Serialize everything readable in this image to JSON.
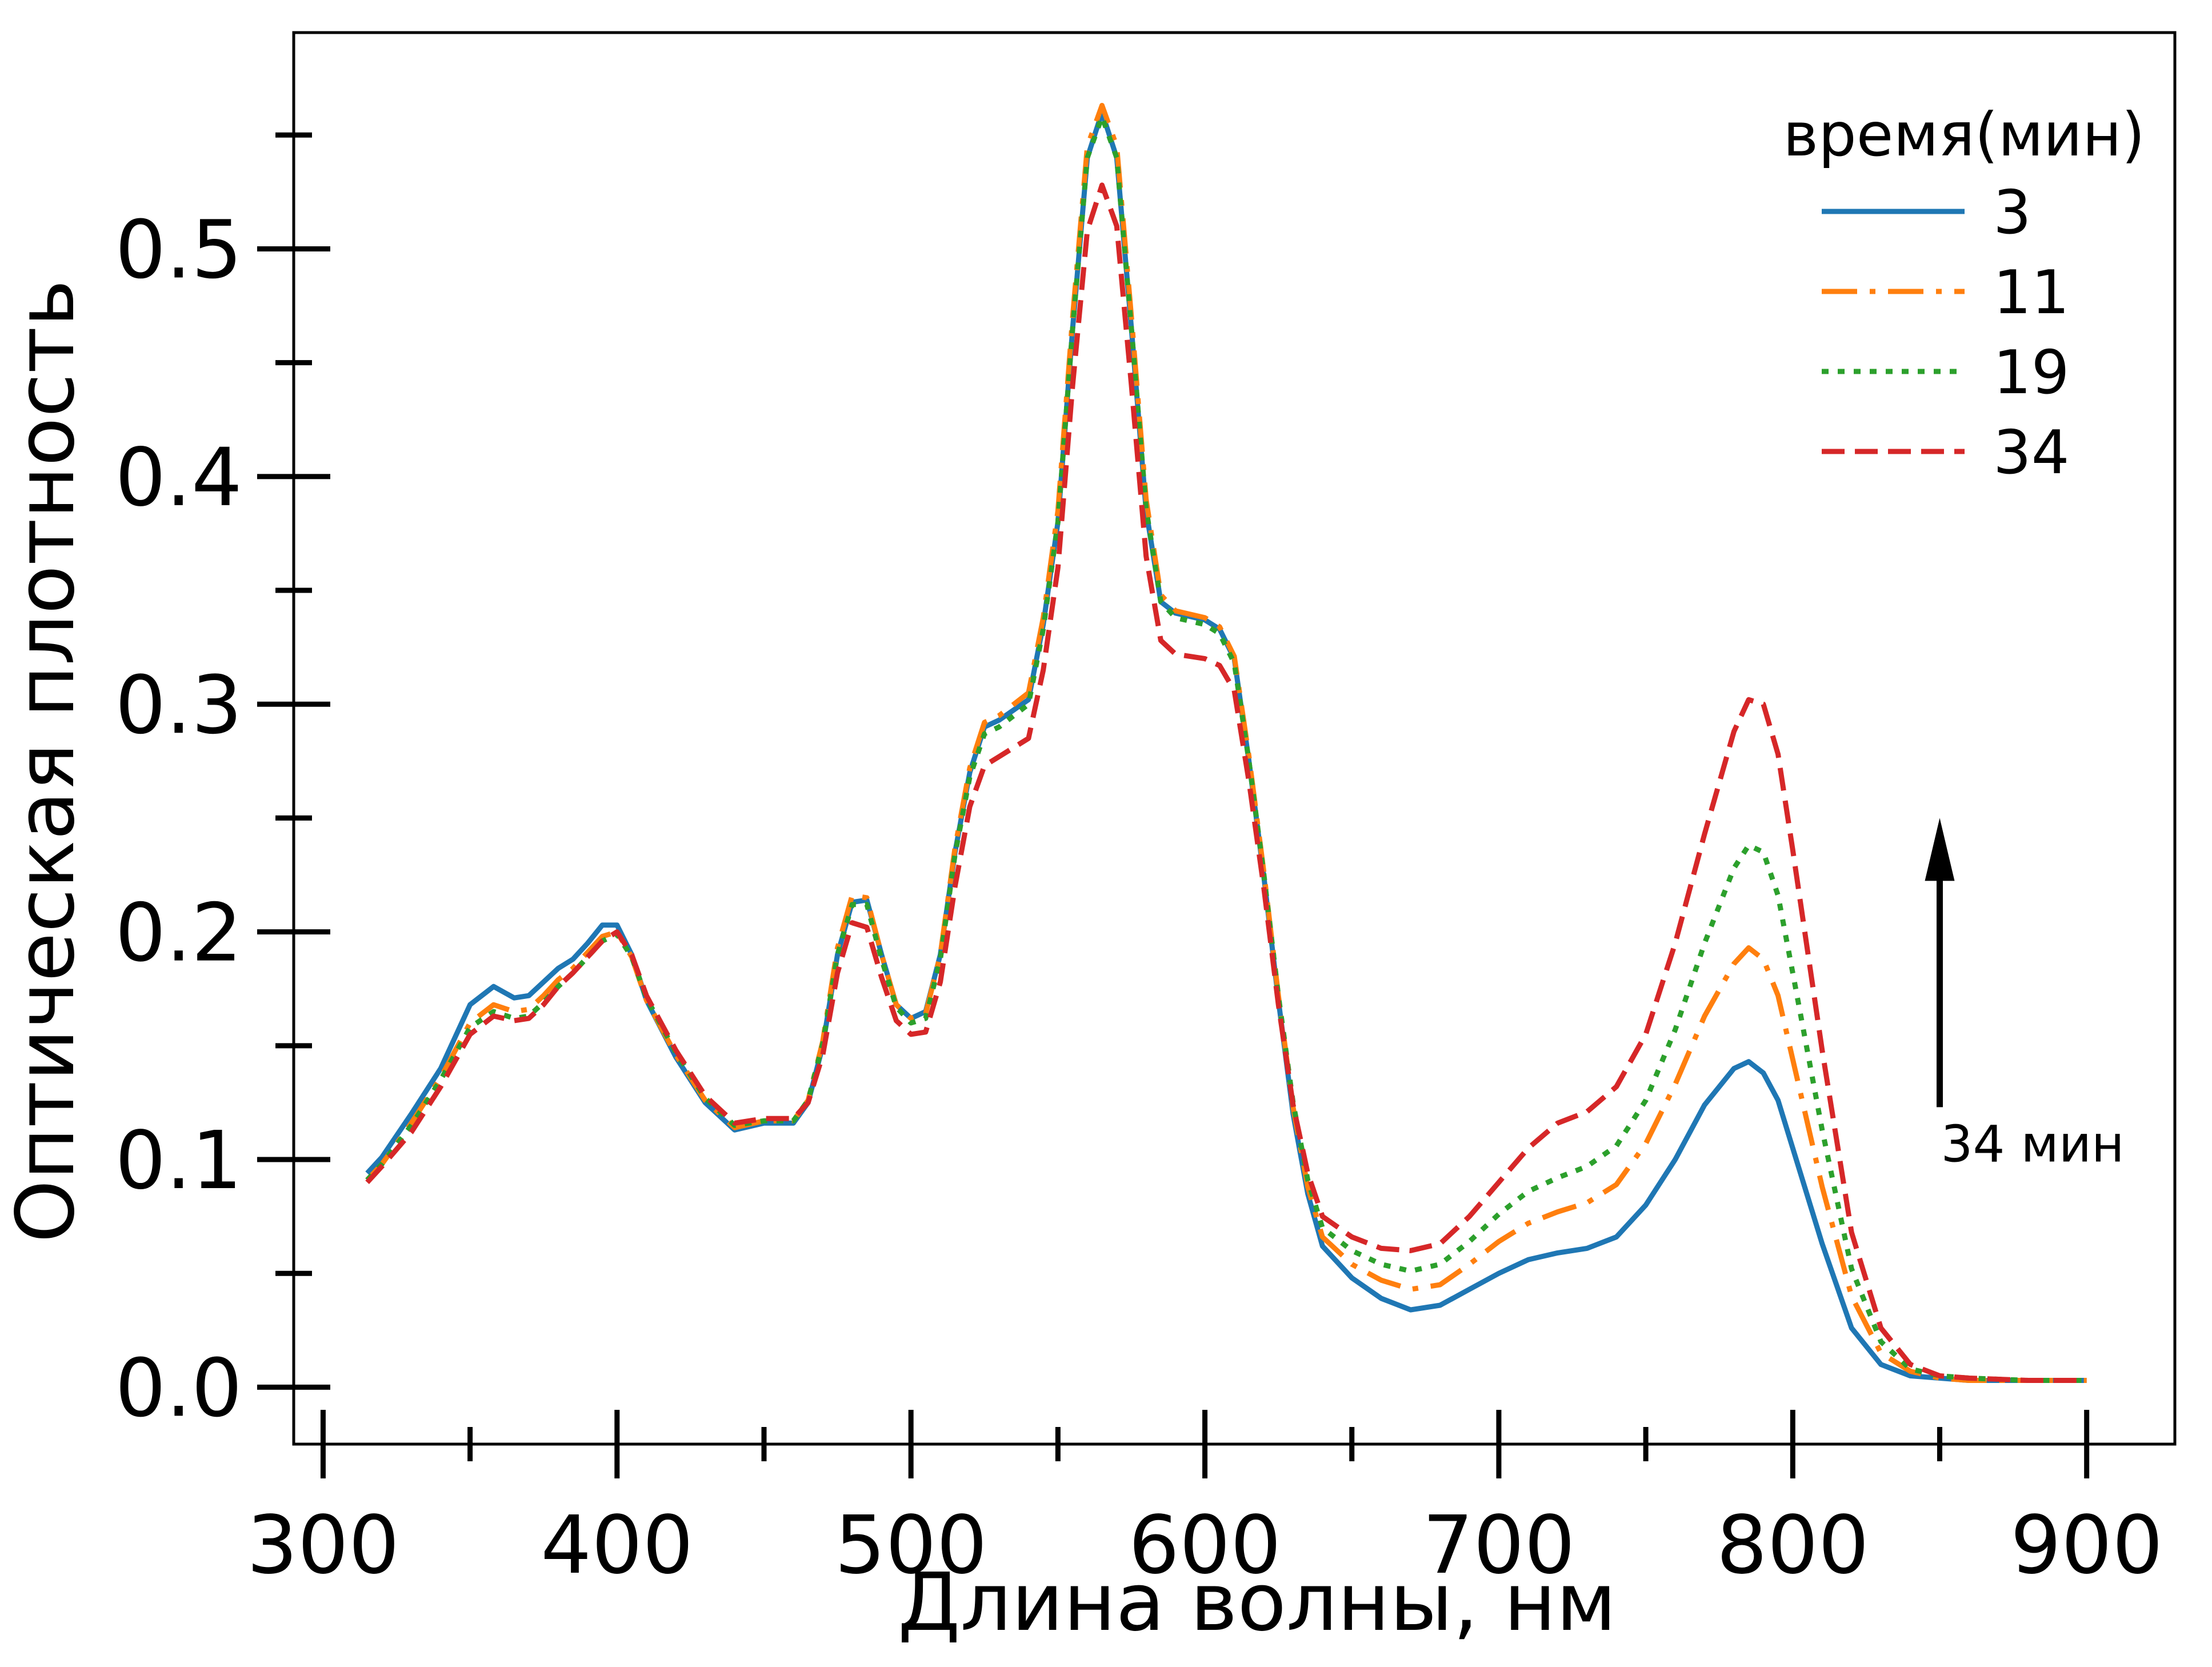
{
  "chart_data": {
    "type": "line",
    "title": "",
    "xlabel": "Длина волны, нм",
    "ylabel": "Оптическая плотность",
    "xlim": [
      290,
      930
    ],
    "ylim": [
      -0.025,
      0.595
    ],
    "x_ticks": [
      300,
      400,
      500,
      600,
      700,
      800,
      900
    ],
    "y_ticks": [
      0.0,
      0.1,
      0.2,
      0.3,
      0.4,
      0.5
    ],
    "x_tick_labels": [
      "300",
      "400",
      "500",
      "600",
      "700",
      "800",
      "900"
    ],
    "y_tick_labels": [
      "0.0",
      "0.1",
      "0.2",
      "0.3",
      "0.4",
      "0.5"
    ],
    "grid": false,
    "legend": {
      "title": "время(мин)",
      "placement": "top-right"
    },
    "annotation": {
      "text": "34 мин",
      "arrow_x": 850,
      "arrow_from_y": 0.123,
      "arrow_to_y": 0.25
    },
    "series": [
      {
        "name": "3",
        "color": "#1f77b4",
        "dash": "solid",
        "x": [
          315,
          320,
          330,
          340,
          350,
          358,
          365,
          370,
          375,
          380,
          385,
          390,
          395,
          400,
          405,
          410,
          420,
          430,
          440,
          450,
          460,
          465,
          470,
          475,
          480,
          485,
          490,
          495,
          500,
          505,
          510,
          515,
          520,
          525,
          530,
          540,
          545,
          550,
          555,
          560,
          565,
          570,
          575,
          580,
          585,
          590,
          600,
          605,
          610,
          615,
          620,
          625,
          630,
          635,
          640,
          650,
          660,
          670,
          680,
          690,
          700,
          710,
          720,
          730,
          740,
          750,
          760,
          770,
          780,
          785,
          790,
          795,
          800,
          810,
          820,
          830,
          840,
          850,
          860,
          880,
          900
        ],
        "y": [
          0.094,
          0.101,
          0.12,
          0.14,
          0.168,
          0.176,
          0.171,
          0.172,
          0.178,
          0.184,
          0.188,
          0.195,
          0.203,
          0.203,
          0.19,
          0.17,
          0.145,
          0.125,
          0.113,
          0.116,
          0.116,
          0.125,
          0.15,
          0.19,
          0.213,
          0.214,
          0.19,
          0.168,
          0.162,
          0.165,
          0.19,
          0.235,
          0.27,
          0.29,
          0.293,
          0.302,
          0.335,
          0.38,
          0.465,
          0.54,
          0.56,
          0.54,
          0.465,
          0.385,
          0.345,
          0.34,
          0.337,
          0.333,
          0.32,
          0.275,
          0.225,
          0.17,
          0.12,
          0.085,
          0.062,
          0.048,
          0.039,
          0.034,
          0.036,
          0.043,
          0.05,
          0.056,
          0.059,
          0.061,
          0.066,
          0.08,
          0.1,
          0.124,
          0.14,
          0.143,
          0.138,
          0.126,
          0.105,
          0.063,
          0.026,
          0.01,
          0.005,
          0.004,
          0.003,
          0.003,
          0.003
        ]
      },
      {
        "name": "11",
        "color": "#ff7f0e",
        "dash": "dashdot",
        "x": [
          315,
          320,
          330,
          340,
          350,
          358,
          365,
          370,
          375,
          380,
          385,
          390,
          395,
          400,
          405,
          410,
          420,
          430,
          440,
          450,
          460,
          465,
          470,
          475,
          480,
          485,
          490,
          495,
          500,
          505,
          510,
          515,
          520,
          525,
          530,
          540,
          545,
          550,
          555,
          560,
          565,
          570,
          575,
          580,
          585,
          590,
          600,
          605,
          610,
          615,
          620,
          625,
          630,
          635,
          640,
          650,
          660,
          670,
          680,
          690,
          700,
          710,
          720,
          730,
          740,
          750,
          760,
          770,
          780,
          785,
          790,
          795,
          800,
          810,
          820,
          830,
          840,
          850,
          860,
          880,
          900
        ],
        "y": [
          0.091,
          0.098,
          0.116,
          0.136,
          0.16,
          0.168,
          0.165,
          0.166,
          0.172,
          0.179,
          0.184,
          0.191,
          0.198,
          0.2,
          0.189,
          0.17,
          0.146,
          0.126,
          0.114,
          0.117,
          0.117,
          0.126,
          0.152,
          0.193,
          0.216,
          0.215,
          0.19,
          0.168,
          0.162,
          0.164,
          0.19,
          0.237,
          0.272,
          0.292,
          0.295,
          0.305,
          0.338,
          0.385,
          0.47,
          0.545,
          0.563,
          0.545,
          0.47,
          0.39,
          0.348,
          0.341,
          0.338,
          0.334,
          0.321,
          0.277,
          0.227,
          0.172,
          0.123,
          0.088,
          0.066,
          0.054,
          0.047,
          0.043,
          0.045,
          0.054,
          0.064,
          0.072,
          0.077,
          0.081,
          0.089,
          0.107,
          0.133,
          0.163,
          0.186,
          0.193,
          0.188,
          0.172,
          0.144,
          0.088,
          0.04,
          0.015,
          0.007,
          0.004,
          0.003,
          0.003,
          0.003
        ]
      },
      {
        "name": "19",
        "color": "#2ca02c",
        "dash": "dotted",
        "x": [
          315,
          320,
          330,
          340,
          350,
          358,
          365,
          370,
          375,
          380,
          385,
          390,
          395,
          400,
          405,
          410,
          420,
          430,
          440,
          450,
          460,
          465,
          470,
          475,
          480,
          485,
          490,
          495,
          500,
          505,
          510,
          515,
          520,
          525,
          530,
          540,
          545,
          550,
          555,
          560,
          565,
          570,
          575,
          580,
          585,
          590,
          600,
          605,
          610,
          615,
          620,
          625,
          630,
          635,
          640,
          650,
          660,
          670,
          680,
          690,
          700,
          710,
          720,
          730,
          740,
          750,
          760,
          770,
          780,
          785,
          790,
          795,
          800,
          810,
          820,
          830,
          840,
          850,
          860,
          880,
          900
        ],
        "y": [
          0.091,
          0.098,
          0.115,
          0.135,
          0.158,
          0.165,
          0.162,
          0.163,
          0.169,
          0.176,
          0.182,
          0.189,
          0.196,
          0.199,
          0.189,
          0.171,
          0.147,
          0.127,
          0.115,
          0.117,
          0.117,
          0.126,
          0.151,
          0.19,
          0.212,
          0.212,
          0.188,
          0.167,
          0.16,
          0.162,
          0.188,
          0.234,
          0.268,
          0.287,
          0.29,
          0.3,
          0.333,
          0.38,
          0.465,
          0.54,
          0.558,
          0.54,
          0.465,
          0.386,
          0.345,
          0.338,
          0.335,
          0.331,
          0.318,
          0.275,
          0.226,
          0.172,
          0.125,
          0.091,
          0.07,
          0.06,
          0.054,
          0.051,
          0.054,
          0.064,
          0.076,
          0.086,
          0.092,
          0.097,
          0.106,
          0.126,
          0.157,
          0.195,
          0.228,
          0.238,
          0.235,
          0.216,
          0.182,
          0.113,
          0.052,
          0.02,
          0.008,
          0.005,
          0.004,
          0.003,
          0.003
        ]
      },
      {
        "name": "34",
        "color": "#d62728",
        "dash": "dashed",
        "x": [
          315,
          320,
          330,
          340,
          350,
          358,
          365,
          370,
          375,
          380,
          385,
          390,
          395,
          400,
          405,
          410,
          420,
          430,
          440,
          450,
          460,
          465,
          470,
          475,
          480,
          485,
          490,
          495,
          500,
          505,
          510,
          515,
          520,
          525,
          530,
          540,
          545,
          550,
          555,
          560,
          565,
          570,
          575,
          580,
          585,
          590,
          600,
          605,
          610,
          615,
          620,
          625,
          630,
          635,
          640,
          650,
          660,
          670,
          680,
          690,
          700,
          710,
          720,
          730,
          740,
          750,
          760,
          770,
          780,
          785,
          790,
          795,
          800,
          810,
          820,
          830,
          840,
          850,
          860,
          880,
          900
        ],
        "y": [
          0.09,
          0.097,
          0.112,
          0.132,
          0.155,
          0.163,
          0.161,
          0.162,
          0.168,
          0.176,
          0.182,
          0.189,
          0.196,
          0.2,
          0.19,
          0.172,
          0.148,
          0.128,
          0.116,
          0.118,
          0.118,
          0.125,
          0.146,
          0.182,
          0.204,
          0.202,
          0.18,
          0.161,
          0.155,
          0.156,
          0.178,
          0.22,
          0.255,
          0.273,
          0.277,
          0.285,
          0.315,
          0.36,
          0.44,
          0.508,
          0.528,
          0.51,
          0.44,
          0.365,
          0.328,
          0.322,
          0.32,
          0.317,
          0.306,
          0.266,
          0.22,
          0.168,
          0.124,
          0.094,
          0.075,
          0.066,
          0.061,
          0.06,
          0.063,
          0.075,
          0.09,
          0.105,
          0.116,
          0.121,
          0.132,
          0.155,
          0.195,
          0.243,
          0.288,
          0.302,
          0.3,
          0.278,
          0.236,
          0.148,
          0.068,
          0.026,
          0.01,
          0.005,
          0.004,
          0.003,
          0.003
        ]
      }
    ]
  }
}
